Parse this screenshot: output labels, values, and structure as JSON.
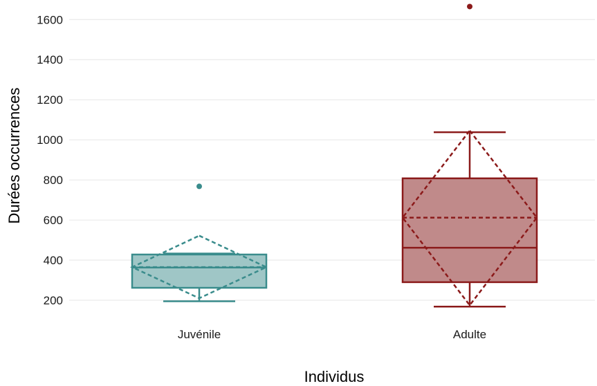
{
  "chart_data": {
    "type": "box",
    "xlabel": "Individus",
    "ylabel": "Durées occurrences",
    "ylim": [
      140,
      1680
    ],
    "yticks": [
      200,
      400,
      600,
      800,
      1000,
      1200,
      1400,
      1600
    ],
    "grid": true,
    "legend": "none",
    "categories": [
      "Juvénile",
      "Adulte"
    ],
    "boxes": [
      {
        "category": "Juvénile",
        "color": "#3a8c8c",
        "fill": "#9fc6c6",
        "whisker_low": 195,
        "q1": 262,
        "median": 363,
        "q3": 428,
        "whisker_high": 433,
        "mean": 365,
        "mean_minus_sd": 210,
        "mean_plus_sd": 522,
        "outliers": [
          768
        ]
      },
      {
        "category": "Adulte",
        "color": "#8b1a1a",
        "fill": "#c08a8a",
        "whisker_low": 168,
        "q1": 290,
        "median": 462,
        "q3": 808,
        "whisker_high": 1038,
        "mean": 612,
        "mean_minus_sd": 175,
        "mean_plus_sd": 1046,
        "outliers": [
          1665
        ]
      }
    ]
  }
}
